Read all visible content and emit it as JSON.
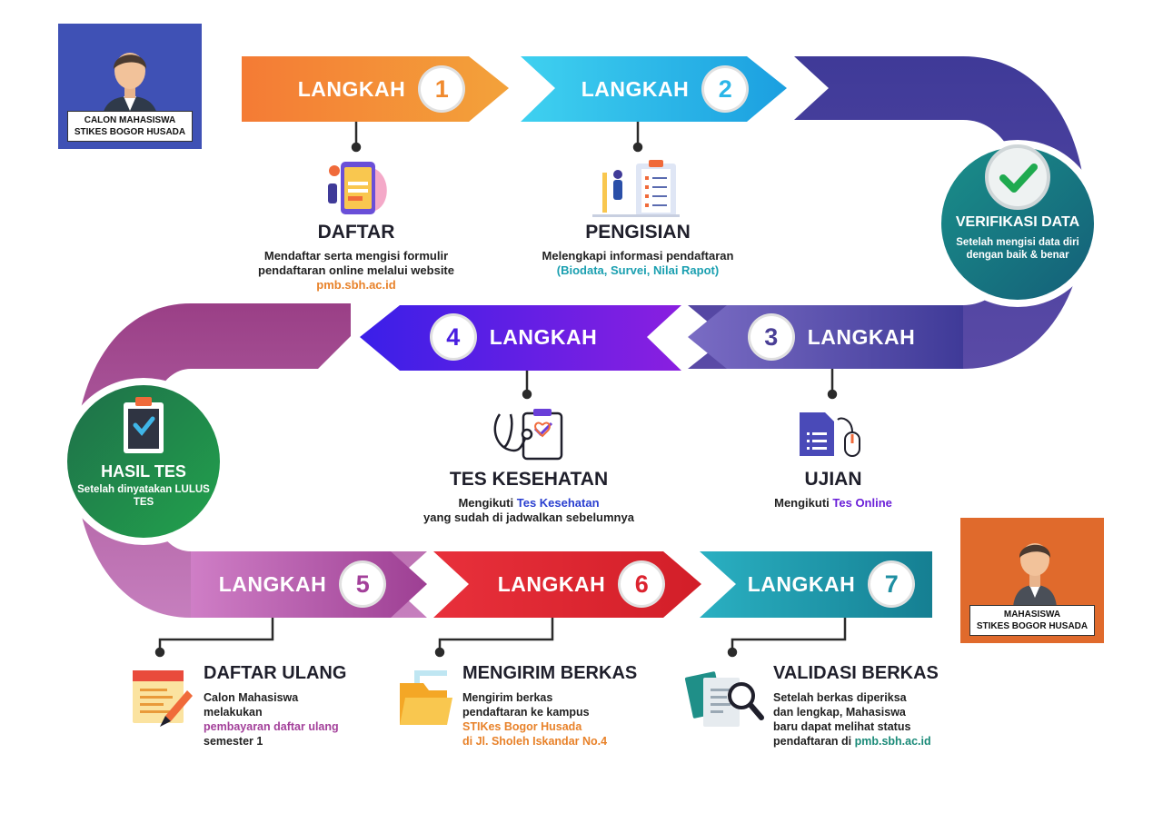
{
  "colors": {
    "step1": "#f08a2e",
    "step2": "#2bb6e8",
    "step3": "#5a4aa6",
    "step4": "#5a1fe0",
    "step5": "#b55aa8",
    "step6": "#dc2430",
    "step7": "#1f9bb0",
    "verify_circle": "#1b7f86",
    "result_circle": "#1f8f48",
    "link_orange": "#e8822a",
    "link_teal": "#1a9fb0",
    "link_blue": "#2a3fd0",
    "link_purple": "#6a1fd8",
    "link_magenta": "#a3409a",
    "link_green": "#1a8a78"
  },
  "avatars": {
    "top_left": {
      "line1": "CALON MAHASISWA",
      "line2": "STIKES  BOGOR HUSADA",
      "bg": "#3f51b5"
    },
    "bottom_right": {
      "line1": "MAHASISWA",
      "line2": "STIKES BOGOR HUSADA",
      "bg": "#e06a2c"
    }
  },
  "steps": [
    {
      "word": "LANGKAH",
      "number": "1"
    },
    {
      "word": "LANGKAH",
      "number": "2"
    },
    {
      "word": "LANGKAH",
      "number": "3"
    },
    {
      "word": "LANGKAH",
      "number": "4"
    },
    {
      "word": "LANGKAH",
      "number": "5"
    },
    {
      "word": "LANGKAH",
      "number": "6"
    },
    {
      "word": "LANGKAH",
      "number": "7"
    }
  ],
  "daftar": {
    "title": "DAFTAR",
    "line1": "Mendaftar serta mengisi formulir",
    "line2": "pendaftaran online melalui website",
    "link": "pmb.sbh.ac.id",
    "icon": "phone-form-icon"
  },
  "pengisian": {
    "title": "PENGISIAN",
    "line1": "Melengkapi informasi pendaftaran",
    "link": "(Biodata, Survei, Nilai Rapot)",
    "icon": "clipboard-checklist-icon"
  },
  "verifikasi": {
    "title": "VERIFIKASI DATA",
    "line1": "Setelah mengisi data diri",
    "line2": "dengan baik & benar",
    "icon": "check-circle-icon"
  },
  "ujian": {
    "title": "UJIAN",
    "prefix": "Mengikuti ",
    "link": "Tes Online",
    "icon": "form-mouse-icon"
  },
  "kesehatan": {
    "title": "TES KESEHATAN",
    "prefix": "Mengikuti ",
    "link": "Tes Kesehatan",
    "line2": "yang sudah di jadwalkan sebelumnya",
    "icon": "stethoscope-icon"
  },
  "hasil": {
    "title": "HASIL TES",
    "line1": "Setelah dinyatakan LULUS",
    "line2": "TES",
    "icon": "clipboard-check-icon"
  },
  "daftar_ulang": {
    "title": "DAFTAR ULANG",
    "line1": "Calon Mahasiswa",
    "line2": "melakukan",
    "link": "pembayaran daftar ulang",
    "line3": "semester 1",
    "icon": "document-pen-icon"
  },
  "mengirim": {
    "title": "MENGIRIM BERKAS",
    "line1": "Mengirim berkas",
    "line2": "pendaftaran ke kampus",
    "link1": "STIKes Bogor Husada",
    "link2": "di Jl. Sholeh Iskandar No.4",
    "icon": "folder-icon"
  },
  "validasi": {
    "title": "VALIDASI BERKAS",
    "line1": "Setelah berkas diperiksa",
    "line2": "dan lengkap, Mahasiswa",
    "line3": "baru dapat melihat status",
    "prefix": "pendaftaran di ",
    "link": "pmb.sbh.ac.id",
    "icon": "document-search-icon"
  }
}
